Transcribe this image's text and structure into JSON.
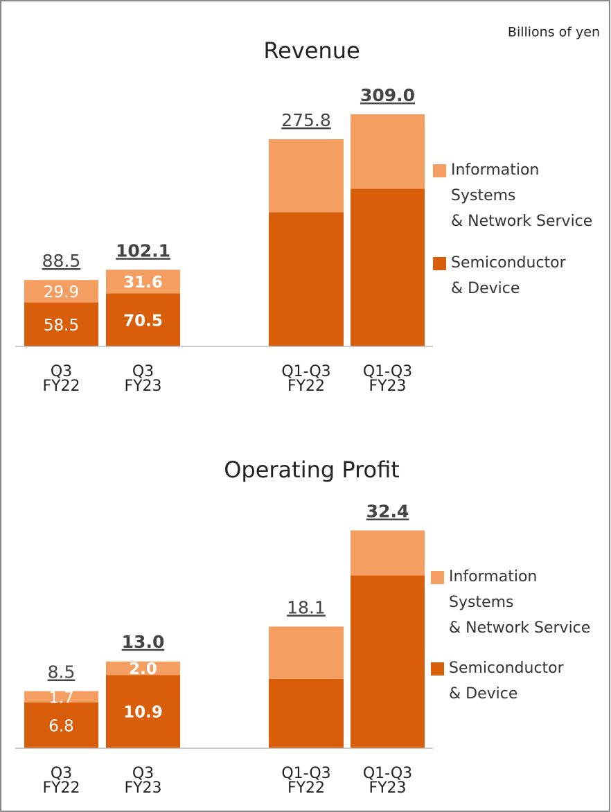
{
  "note": "Billions of yen",
  "chart_data": [
    {
      "type": "bar",
      "stacked": true,
      "title": "Revenue",
      "categories": [
        "Q3\nFY22",
        "Q3\nFY23",
        "Q1-Q3\nFY22",
        "Q1-Q3\nFY23"
      ],
      "series": [
        {
          "name": "Semiconductor\n& Device",
          "color": "#d95e0c",
          "values": [
            58.5,
            70.5,
            178.7,
            210.0
          ],
          "value_labels": [
            "58.5",
            "70.5",
            null,
            null
          ]
        },
        {
          "name": "Information\nSystems\n& Network Service",
          "color": "#f59e62",
          "values": [
            29.9,
            31.6,
            97.1,
            99.0
          ],
          "value_labels": [
            "29.9",
            "31.6",
            null,
            null
          ]
        }
      ],
      "totals": [
        88.5,
        102.1,
        275.8,
        309.0
      ],
      "total_labels": [
        "88.5",
        "102.1",
        "275.8",
        "309.0"
      ],
      "highlight": [
        false,
        true,
        false,
        true
      ],
      "ylim": [
        0,
        320
      ]
    },
    {
      "type": "bar",
      "stacked": true,
      "title": "Operating Profit",
      "categories": [
        "Q3\nFY22",
        "Q3\nFY23",
        "Q1-Q3\nFY22",
        "Q1-Q3\nFY23"
      ],
      "series": [
        {
          "name": "Semiconductor\n& Device",
          "color": "#d95e0c",
          "values": [
            6.8,
            10.9,
            10.3,
            25.7
          ],
          "value_labels": [
            "6.8",
            "10.9",
            null,
            null
          ]
        },
        {
          "name": "Information\nSystems\n& Network Service",
          "color": "#f59e62",
          "values": [
            1.7,
            2.0,
            7.8,
            6.7
          ],
          "value_labels": [
            "1.7",
            "2.0",
            null,
            null
          ]
        }
      ],
      "totals": [
        8.5,
        13.0,
        18.1,
        32.4
      ],
      "total_labels": [
        "8.5",
        "13.0",
        "18.1",
        "32.4"
      ],
      "highlight": [
        false,
        true,
        false,
        true
      ],
      "ylim": [
        0,
        34
      ]
    }
  ]
}
